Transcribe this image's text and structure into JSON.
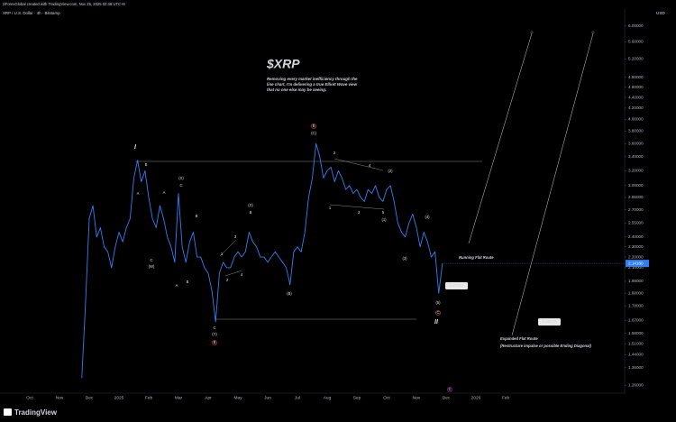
{
  "chart_data": {
    "type": "line",
    "header": "SForexGlobal created with TradingView.com, Nov 25, 2025 02:46 UTC+8",
    "title": "$XRP",
    "subtitle_lines": [
      "Removing every market inefficiency through the",
      "line chart, I'm delivering a true Elliott Wave view",
      "that no one else may be seeing."
    ],
    "currency": "USD",
    "brand": "TradingView",
    "log_scale": true,
    "grid": false,
    "ylim": [
      1.218,
      6.46
    ],
    "yticks": [
      {
        "value": 6.0,
        "label": "6.00000"
      },
      {
        "value": 5.6,
        "label": "5.60000"
      },
      {
        "value": 5.2,
        "label": "5.20000"
      },
      {
        "value": 4.8,
        "label": "4.80000"
      },
      {
        "value": 4.6,
        "label": "4.60000"
      },
      {
        "value": 4.4,
        "label": "4.40000"
      },
      {
        "value": 4.2,
        "label": "4.20000"
      },
      {
        "value": 4.0,
        "label": "4.00000"
      },
      {
        "value": 3.8,
        "label": "3.80000"
      },
      {
        "value": 3.6,
        "label": "3.60000"
      },
      {
        "value": 3.4,
        "label": "3.40000"
      },
      {
        "value": 3.2,
        "label": "3.20000"
      },
      {
        "value": 3.0,
        "label": "3.00000"
      },
      {
        "value": 2.85,
        "label": "2.85000"
      },
      {
        "value": 2.7,
        "label": "2.70000"
      },
      {
        "value": 2.55,
        "label": "2.55000"
      },
      {
        "value": 2.4,
        "label": "2.40000"
      },
      {
        "value": 2.3,
        "label": "2.30000"
      },
      {
        "value": 2.2,
        "label": "2.20000"
      },
      {
        "value": 2.1,
        "label": "2.10000"
      },
      {
        "value": 1.98,
        "label": "1.98000"
      },
      {
        "value": 1.88,
        "label": "1.88000"
      },
      {
        "value": 1.78,
        "label": "1.78000"
      },
      {
        "value": 1.67,
        "label": "1.67000"
      },
      {
        "value": 1.58,
        "label": "1.58000"
      },
      {
        "value": 1.51,
        "label": "1.51000"
      },
      {
        "value": 1.44,
        "label": "1.44000"
      },
      {
        "value": 1.36,
        "label": "1.36000"
      },
      {
        "value": 1.26,
        "label": "1.26000"
      }
    ],
    "categories": [
      "Oct",
      null,
      null,
      null,
      null,
      null,
      null,
      null,
      "Nov",
      null,
      null,
      null,
      null,
      null,
      null,
      null,
      "Dec",
      null,
      null,
      null,
      null,
      null,
      null,
      null,
      "2025",
      null,
      null,
      null,
      null,
      null,
      null,
      null,
      "Feb",
      null,
      null,
      null,
      null,
      null,
      null,
      null,
      "Mar",
      null,
      null,
      null,
      null,
      null,
      null,
      null,
      "Apr",
      null,
      null,
      null,
      null,
      null,
      null,
      null,
      "May",
      null,
      null,
      null,
      null,
      null,
      null,
      null,
      "Jun",
      null,
      null,
      null,
      null,
      null,
      null,
      null,
      "Jul",
      null,
      null,
      null,
      null,
      null,
      null,
      null,
      "Aug",
      null,
      null,
      null,
      null,
      null,
      null,
      null,
      "Sep",
      null,
      null,
      null,
      null,
      null,
      null,
      null,
      "Oct",
      null,
      null,
      null,
      null,
      null,
      null,
      null,
      "Nov",
      null,
      null,
      null,
      null,
      null,
      null,
      null,
      "Dec",
      null,
      null,
      null,
      null,
      null,
      null,
      null,
      "2026",
      null,
      null,
      null,
      null,
      null,
      null,
      null,
      "Feb"
    ],
    "series": [
      {
        "name": "XRP / U.S. Dollar · 4h · Bitstamp",
        "color": "#2f7ff0",
        "values": [
          null,
          null,
          null,
          null,
          null,
          null,
          null,
          null,
          null,
          null,
          null,
          null,
          null,
          null,
          1.3,
          1.8,
          2.6,
          2.75,
          2.4,
          2.5,
          2.3,
          2.25,
          2.1,
          2.3,
          2.45,
          2.35,
          2.5,
          2.6,
          3.1,
          3.35,
          3.05,
          3.2,
          2.85,
          2.6,
          2.5,
          2.75,
          2.6,
          2.4,
          2.3,
          2.15,
          2.9,
          2.3,
          2.15,
          2.35,
          2.45,
          2.2,
          2.2,
          2.1,
          2.05,
          1.9,
          1.66,
          2.05,
          2.15,
          2.1,
          2.1,
          2.2,
          2.25,
          2.2,
          2.25,
          2.45,
          2.35,
          2.3,
          2.2,
          2.2,
          2.15,
          2.2,
          2.25,
          2.2,
          2.15,
          2.1,
          1.95,
          2.25,
          2.3,
          2.25,
          2.45,
          2.85,
          3.1,
          3.6,
          3.4,
          3.1,
          3.2,
          3.25,
          3.05,
          3.2,
          3.1,
          2.95,
          3.0,
          2.9,
          2.95,
          2.85,
          2.8,
          2.95,
          2.9,
          3.0,
          2.85,
          2.8,
          2.95,
          3.0,
          2.8,
          2.55,
          2.45,
          2.4,
          2.55,
          2.65,
          2.5,
          2.3,
          2.45,
          2.35,
          2.2,
          2.25,
          1.88,
          2.14,
          null,
          null,
          null,
          null,
          null,
          null,
          null,
          null,
          null,
          null,
          null,
          null,
          null,
          null,
          null,
          null,
          null
        ]
      }
    ],
    "price_tag": "2.14160",
    "price_labels": [
      "1.87061",
      "1.65772"
    ],
    "notes": [
      "Running Flat Route",
      "Expanded Flat Route",
      "(Restructure impulse or possible Ending Diagonal)"
    ],
    "annotations": [
      "I",
      "B",
      "A",
      "A",
      "(X)",
      "C",
      "B",
      "C",
      "(W)",
      "A",
      "B",
      "C",
      "(Y)",
      "B",
      "(X)",
      "B",
      "3",
      "1",
      "2",
      "4",
      "(B)",
      "B",
      "(C)",
      "2",
      "4",
      "1",
      "3",
      "5",
      "(1)",
      "(2)",
      "(3)",
      "(4)",
      "(5)",
      "C",
      "II",
      "C"
    ]
  }
}
